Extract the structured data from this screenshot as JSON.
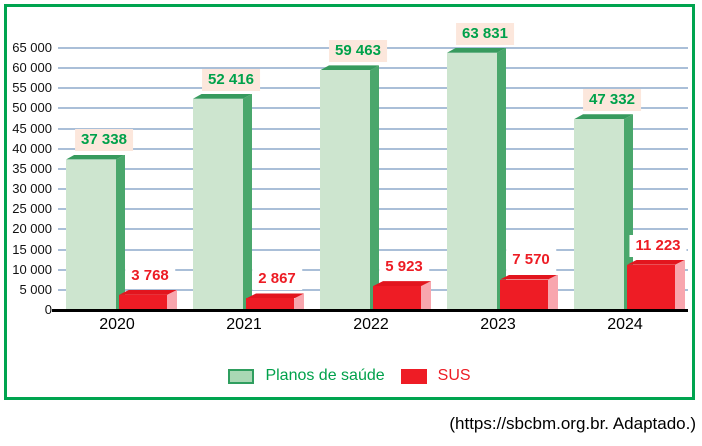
{
  "source": "(https://sbcbm.org.br. Adaptado.)",
  "legend": {
    "items": [
      {
        "label": "Planos de saúde",
        "color": "#00a14b"
      },
      {
        "label": "SUS",
        "color": "#ed1c24"
      }
    ]
  },
  "colors": {
    "frame": "#00a44f",
    "grid": "#aabfd8",
    "axis": "#000000",
    "green_front": "#cde5cf",
    "green_side": "#4aa76c",
    "green_top": "#379a5e",
    "green_value": "#00a14b",
    "green_value_bg": "#fce7dc",
    "red_front": "#ee1c25",
    "red_side": "#f8a6ae",
    "red_top": "#e2151e",
    "red_value": "#ed1c24",
    "red_value_bg": "#ffffff",
    "legend_swatch_green": "#a9d8b4",
    "legend_swatch_green_border": "#2f9e5f"
  },
  "chart_data": {
    "type": "bar",
    "title": "",
    "categories": [
      "2020",
      "2021",
      "2022",
      "2023",
      "2024"
    ],
    "series": [
      {
        "name": "Planos de saúde",
        "values": [
          37338,
          52416,
          59463,
          63831,
          47332
        ],
        "labels": [
          "37 338",
          "52 416",
          "59 463",
          "63 831",
          "47 332"
        ],
        "color": "#cde5cf"
      },
      {
        "name": "SUS",
        "values": [
          3768,
          2867,
          5923,
          7570,
          11223
        ],
        "labels": [
          "3 768",
          "2 867",
          "5 923",
          "7 570",
          "11 223"
        ],
        "color": "#ee1c25"
      }
    ],
    "xlabel": "",
    "ylabel": "",
    "ylim": [
      0,
      65000
    ],
    "y_tick_step": 5000,
    "y_tick_labels": [
      "0",
      "5 000",
      "10 000",
      "15 000",
      "20 000",
      "25 000",
      "30 000",
      "35 000",
      "40 000",
      "45 000",
      "50 000",
      "55 000",
      "60 000",
      "65 000"
    ],
    "grid": true,
    "legend_position": "bottom"
  }
}
